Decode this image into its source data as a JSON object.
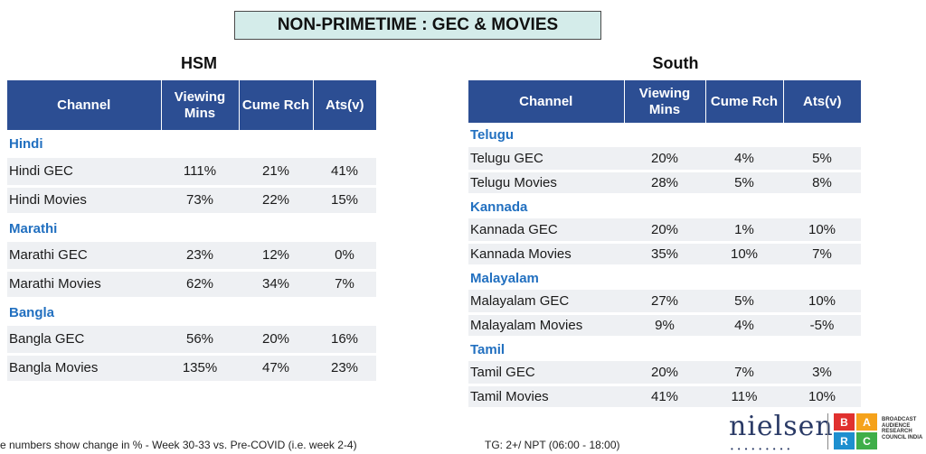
{
  "page_title": "NON-PRIMETIME : GEC & MOVIES",
  "tables": {
    "hsm": {
      "title": "HSM",
      "headers": [
        "Channel",
        "Viewing Mins",
        "Cume Rch",
        "Ats(v)"
      ],
      "groups": [
        {
          "label": "Hindi",
          "rows": [
            {
              "channel": "Hindi GEC",
              "viewing": "111%",
              "cume": "21%",
              "ats": "41%"
            },
            {
              "channel": "Hindi Movies",
              "viewing": "73%",
              "cume": "22%",
              "ats": "15%"
            }
          ]
        },
        {
          "label": "Marathi",
          "rows": [
            {
              "channel": "Marathi GEC",
              "viewing": "23%",
              "cume": "12%",
              "ats": "0%"
            },
            {
              "channel": "Marathi Movies",
              "viewing": "62%",
              "cume": "34%",
              "ats": "7%"
            }
          ]
        },
        {
          "label": "Bangla",
          "rows": [
            {
              "channel": "Bangla GEC",
              "viewing": "56%",
              "cume": "20%",
              "ats": "16%"
            },
            {
              "channel": "Bangla Movies",
              "viewing": "135%",
              "cume": "47%",
              "ats": "23%"
            }
          ]
        }
      ]
    },
    "south": {
      "title": "South",
      "headers": [
        "Channel",
        "Viewing Mins",
        "Cume Rch",
        "Ats(v)"
      ],
      "groups": [
        {
          "label": "Telugu",
          "rows": [
            {
              "channel": "Telugu GEC",
              "viewing": "20%",
              "cume": "4%",
              "ats": "5%"
            },
            {
              "channel": "Telugu Movies",
              "viewing": "28%",
              "cume": "5%",
              "ats": "8%"
            }
          ]
        },
        {
          "label": "Kannada",
          "rows": [
            {
              "channel": "Kannada GEC",
              "viewing": "20%",
              "cume": "1%",
              "ats": "10%"
            },
            {
              "channel": "Kannada Movies",
              "viewing": "35%",
              "cume": "10%",
              "ats": "7%"
            }
          ]
        },
        {
          "label": "Malayalam",
          "rows": [
            {
              "channel": "Malayalam GEC",
              "viewing": "27%",
              "cume": "5%",
              "ats": "10%"
            },
            {
              "channel": "Malayalam Movies",
              "viewing": "9%",
              "cume": "4%",
              "ats": "-5%"
            }
          ]
        },
        {
          "label": "Tamil",
          "rows": [
            {
              "channel": "Tamil GEC",
              "viewing": "20%",
              "cume": "7%",
              "ats": "3%"
            },
            {
              "channel": "Tamil Movies",
              "viewing": "41%",
              "cume": "11%",
              "ats": "10%"
            }
          ]
        }
      ]
    }
  },
  "footer": {
    "note": "e numbers show change in % - Week 30-33 vs. Pre-COVID (i.e. week 2-4)",
    "tg": "TG: 2+/ NPT (06:00 - 18:00)"
  },
  "logos": {
    "nielsen": "nielsen",
    "barc_letters": [
      "B",
      "A",
      "R",
      "C"
    ],
    "barc_colors": [
      "#e0312f",
      "#f5a21b",
      "#1e8fcf",
      "#3fae49"
    ],
    "barc_text": "BROADCAST AUDIENCE RESEARCH COUNCIL INDIA"
  },
  "colors": {
    "header_bg": "#2c4e93",
    "group_label": "#2270c0",
    "title_bg": "#d4ecea"
  }
}
